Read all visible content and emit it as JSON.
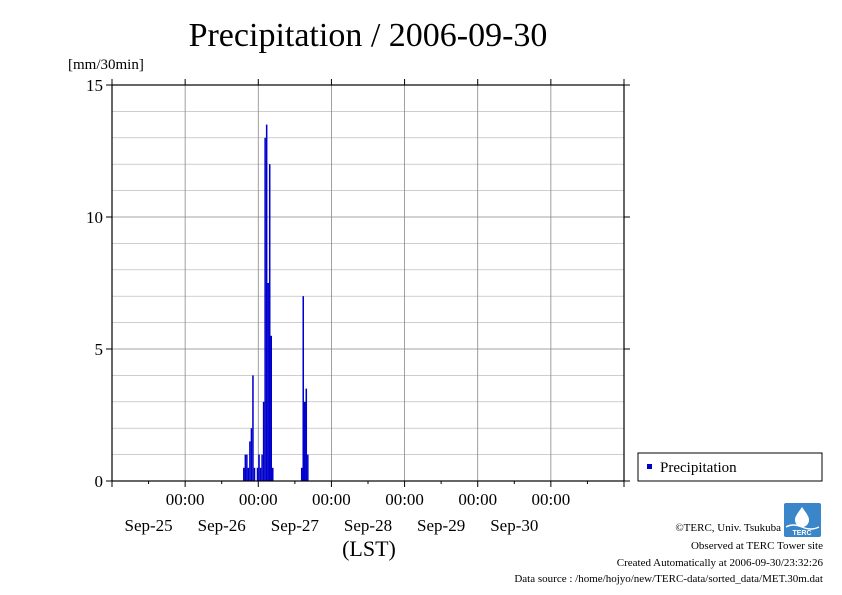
{
  "chart_data": {
    "type": "bar",
    "title": "Precipitation / 2006-09-30",
    "ylabel": "[mm/30min]",
    "xlabel": "(LST)",
    "ylim": [
      0,
      15
    ],
    "y_ticks": [
      0,
      5,
      10,
      15
    ],
    "xlim": [
      "2006-09-24T00:00",
      "2006-10-01T00:00"
    ],
    "x_tick_time_label": "00:00",
    "x_ticks": [
      {
        "time": "2006-09-25T00:00",
        "date": "Sep-25"
      },
      {
        "time": "2006-09-26T00:00",
        "date": "Sep-26"
      },
      {
        "time": "2006-09-27T00:00",
        "date": "Sep-27"
      },
      {
        "time": "2006-09-28T00:00",
        "date": "Sep-28"
      },
      {
        "time": "2006-09-29T00:00",
        "date": "Sep-29"
      },
      {
        "time": "2006-09-30T00:00",
        "date": "Sep-30"
      }
    ],
    "grid": true,
    "legend_position": "right",
    "series": [
      {
        "name": "Precipitation",
        "color": "#0000cc",
        "points": [
          {
            "t": "2006-09-25T19:30",
            "v": 0.5
          },
          {
            "t": "2006-09-25T20:00",
            "v": 1.0
          },
          {
            "t": "2006-09-25T20:30",
            "v": 1.0
          },
          {
            "t": "2006-09-25T21:00",
            "v": 0.5
          },
          {
            "t": "2006-09-25T21:30",
            "v": 1.5
          },
          {
            "t": "2006-09-25T22:00",
            "v": 2.0
          },
          {
            "t": "2006-09-25T22:30",
            "v": 4.0
          },
          {
            "t": "2006-09-25T23:00",
            "v": 0.5
          },
          {
            "t": "2006-09-26T00:00",
            "v": 0.5
          },
          {
            "t": "2006-09-26T00:30",
            "v": 1.0
          },
          {
            "t": "2006-09-26T01:00",
            "v": 0.5
          },
          {
            "t": "2006-09-26T01:30",
            "v": 1.0
          },
          {
            "t": "2006-09-26T02:00",
            "v": 3.0
          },
          {
            "t": "2006-09-26T02:30",
            "v": 13.0
          },
          {
            "t": "2006-09-26T03:00",
            "v": 13.5
          },
          {
            "t": "2006-09-26T03:30",
            "v": 7.5
          },
          {
            "t": "2006-09-26T04:00",
            "v": 12.0
          },
          {
            "t": "2006-09-26T04:30",
            "v": 5.5
          },
          {
            "t": "2006-09-26T05:00",
            "v": 0.5
          },
          {
            "t": "2006-09-26T14:30",
            "v": 0.5
          },
          {
            "t": "2006-09-26T15:00",
            "v": 7.0
          },
          {
            "t": "2006-09-26T15:30",
            "v": 3.0
          },
          {
            "t": "2006-09-26T16:00",
            "v": 3.5
          },
          {
            "t": "2006-09-26T16:30",
            "v": 1.0
          }
        ]
      }
    ]
  },
  "footer": {
    "copyright": "©TERC, Univ. Tsukuba",
    "site": "Observed at TERC Tower site",
    "created": "Created Automatically at 2006-09-30/23:32:26",
    "source": "Data source : /home/hojyo/new/TERC-data/sorted_data/MET.30m.dat",
    "logo_text": "TERC"
  }
}
